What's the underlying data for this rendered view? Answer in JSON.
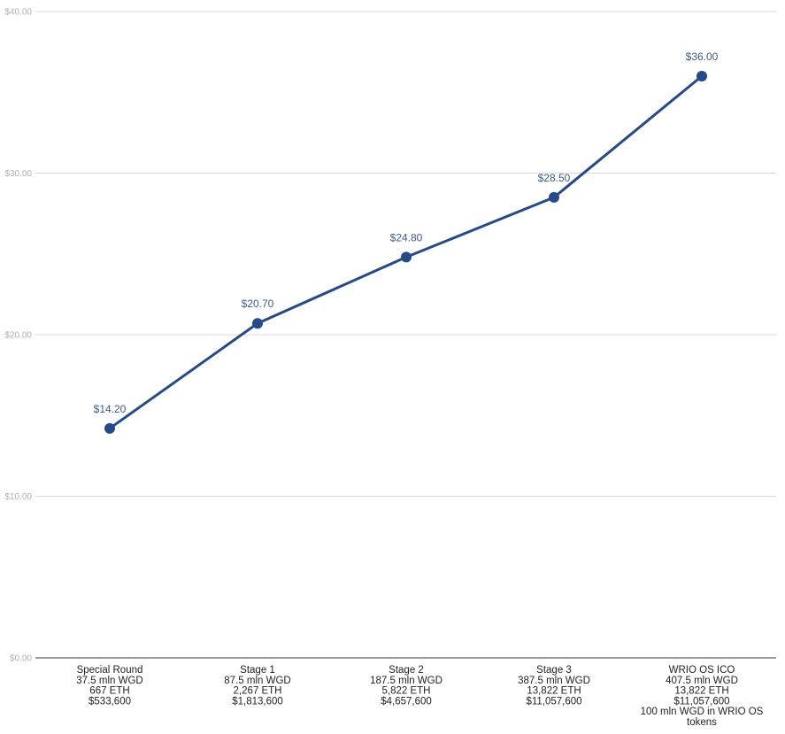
{
  "colors": {
    "series": "#234a8a",
    "data_label": "#3a5a95",
    "grid": "#d9d9d9",
    "tick_text": "#b0b0b0",
    "axis_text": "#222222"
  },
  "chart_data": {
    "type": "line",
    "title": "",
    "xlabel": "",
    "ylabel": "",
    "ylim": [
      0,
      40
    ],
    "y_ticks": [
      0,
      10,
      20,
      30,
      40
    ],
    "y_tick_labels": [
      "$0.00",
      "$10.00",
      "$20.00",
      "$30.00",
      "$40.00"
    ],
    "grid": true,
    "legend": "none",
    "categories": [
      [
        "Special Round",
        "37.5 mln WGD",
        "667 ETH",
        "$533,600"
      ],
      [
        "Stage 1",
        "87.5 mln WGD",
        "2,267 ETH",
        "$1,813,600"
      ],
      [
        "Stage 2",
        "187.5 mln WGD",
        "5,822 ETH",
        "$4,657,600"
      ],
      [
        "Stage 3",
        "387.5 mln WGD",
        "13,822 ETH",
        "$11,057,600"
      ],
      [
        "WRIO OS ICO",
        "407.5 mln WGD",
        "13,822 ETH",
        "$11,057,600",
        "100 mln WGD in WRIO OS",
        "tokens"
      ]
    ],
    "series": [
      {
        "values": [
          14.2,
          20.7,
          24.8,
          28.5,
          36.0
        ],
        "data_labels": [
          "$14.20",
          "$20.70",
          "$24.80",
          "$28.50",
          "$36.00"
        ]
      }
    ]
  }
}
